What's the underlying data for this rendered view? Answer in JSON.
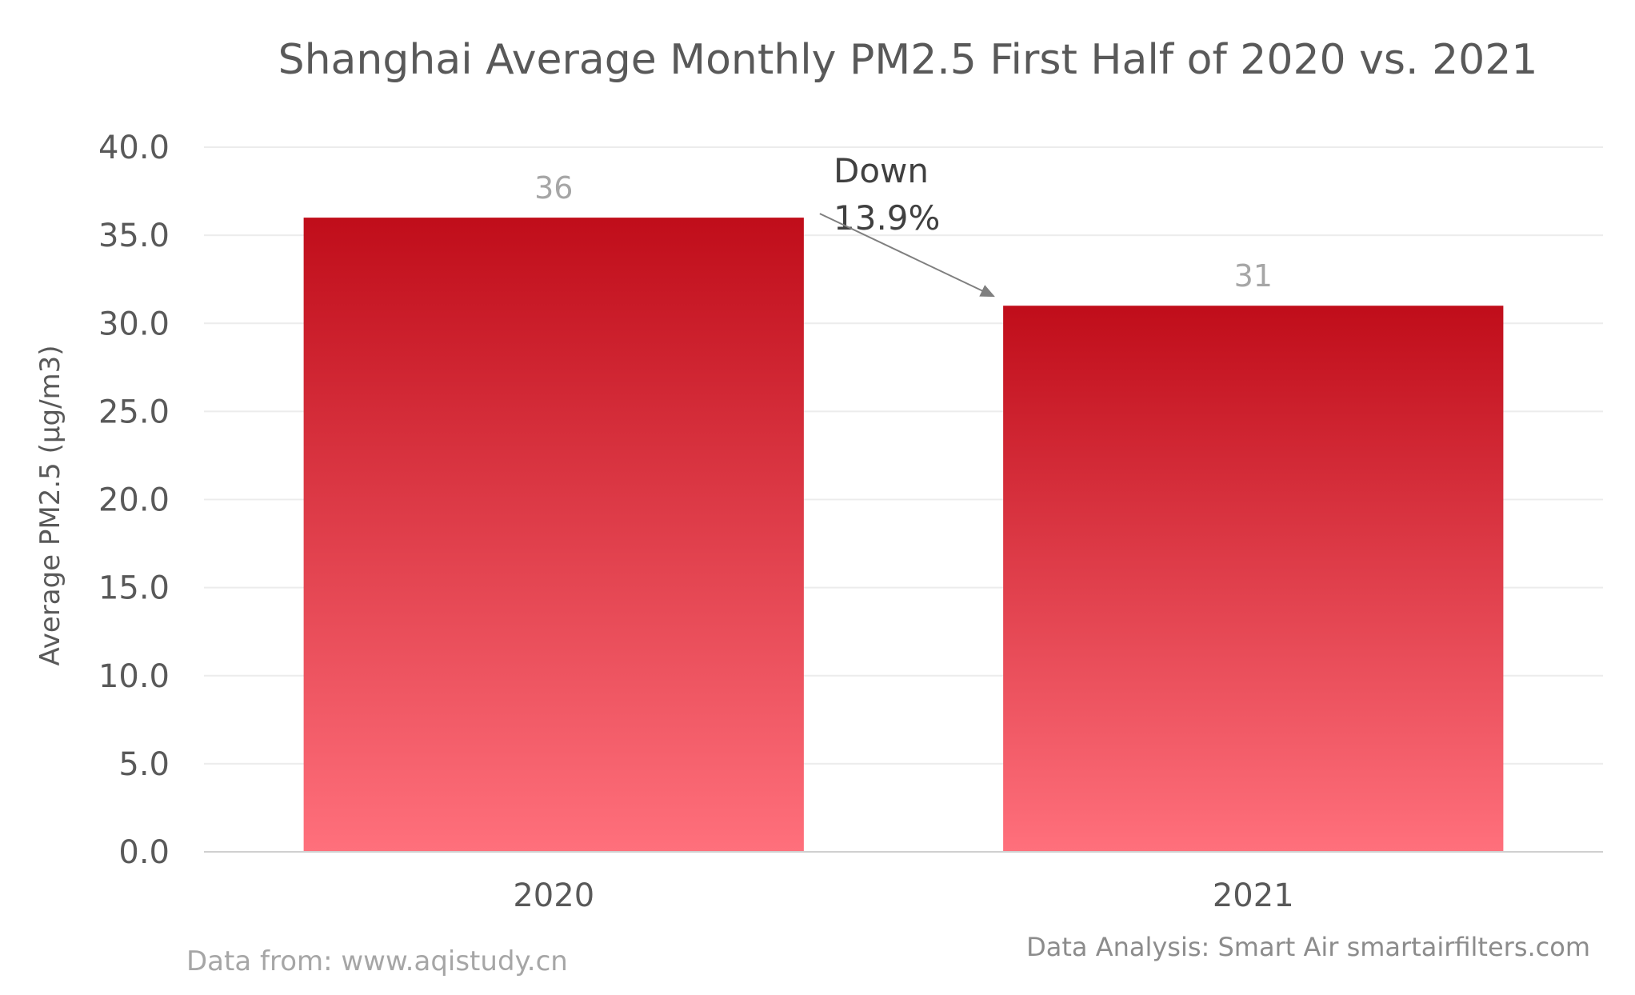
{
  "chart_data": {
    "type": "bar",
    "title": "Shanghai Average Monthly PM2.5 First Half of 2020 vs. 2021",
    "ylabel": "Average PM2.5 (μg/m3)",
    "xlabel": "",
    "categories": [
      "2020",
      "2021"
    ],
    "values": [
      36,
      31
    ],
    "data_labels": [
      "36",
      "31"
    ],
    "ylim": [
      0,
      40
    ],
    "yticks": [
      "0.0",
      "5.0",
      "10.0",
      "15.0",
      "20.0",
      "25.0",
      "30.0",
      "35.0",
      "40.0"
    ],
    "grid": true,
    "legend": "none",
    "annotation": {
      "line1": "Down",
      "line2": "13.9%",
      "from_category": "2020",
      "to_category": "2021"
    },
    "bar_gradient": {
      "top": "#c00d1a",
      "bottom": "#ff707c"
    },
    "source_text": "Data from: www.aqistudy.cn",
    "credit_text": "Data Analysis: Smart Air smartairfilters.com"
  }
}
